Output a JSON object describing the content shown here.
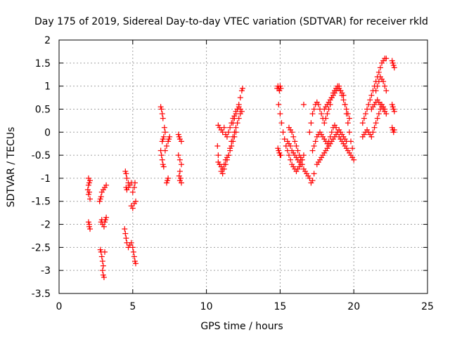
{
  "chart_data": {
    "type": "scatter",
    "title": "Day 175 of 2019, Sidereal Day-to-day VTEC variation (SDTVAR) for receiver rkld",
    "xlabel": "GPS time / hours",
    "ylabel": "SDTVAR / TECUs",
    "xlim": [
      0,
      25
    ],
    "ylim": [
      -3.5,
      2
    ],
    "xticks": [
      0,
      5,
      10,
      15,
      20,
      25
    ],
    "yticks": [
      -3.5,
      -3,
      -2.5,
      -2,
      -1.5,
      -1,
      -0.5,
      0,
      0.5,
      1,
      1.5,
      2
    ],
    "grid": true,
    "marker": "+",
    "color": "#ff0000",
    "series": [
      {
        "name": "SDTVAR",
        "x": [
          2.0,
          2.0,
          2.05,
          2.1,
          2.0,
          2.05,
          2.05,
          2.1,
          1.95,
          2.0,
          2.05,
          2.1,
          2.75,
          2.8,
          2.85,
          2.9,
          3.0,
          3.1,
          3.2,
          2.85,
          2.9,
          2.95,
          3.05,
          3.1,
          3.15,
          3.2,
          2.8,
          2.85,
          2.9,
          2.95,
          3.0,
          2.95,
          3.0,
          3.05,
          3.1,
          4.5,
          4.55,
          4.6,
          4.7,
          4.55,
          4.6,
          4.7,
          4.8,
          4.9,
          5.0,
          5.1,
          5.15,
          4.45,
          4.5,
          4.55,
          4.6,
          4.7,
          4.8,
          4.9,
          5.0,
          5.05,
          5.1,
          5.15,
          5.2,
          4.9,
          5.0,
          5.1,
          5.2,
          6.9,
          6.95,
          7.0,
          7.05,
          7.15,
          7.2,
          7.1,
          7.05,
          7.0,
          6.9,
          6.95,
          7.0,
          7.05,
          7.1,
          7.2,
          7.3,
          7.4,
          7.45,
          7.5,
          7.4,
          7.35,
          7.3,
          8.1,
          8.15,
          8.2,
          8.3,
          8.1,
          8.2,
          8.3,
          8.2,
          8.15,
          8.2,
          8.3,
          8.25,
          10.8,
          10.9,
          11.0,
          11.1,
          11.2,
          11.3,
          11.4,
          11.5,
          11.6,
          11.7,
          11.8,
          11.9,
          12.0,
          12.1,
          12.2,
          12.3,
          12.4,
          12.45,
          10.75,
          10.8,
          10.9,
          11.0,
          11.1,
          11.2,
          11.3,
          11.4,
          11.5,
          11.6,
          11.7,
          11.8,
          11.9,
          12.0,
          12.1,
          12.2,
          12.3,
          10.8,
          10.9,
          11.0,
          11.1,
          11.2,
          11.3,
          11.4,
          11.5,
          11.6,
          11.7,
          11.8,
          11.9,
          12.0,
          11.8,
          11.9,
          12.0,
          12.1,
          12.2,
          12.3,
          12.4,
          14.8,
          14.85,
          14.9,
          14.95,
          15.0,
          15.05,
          14.85,
          14.9,
          14.95,
          15.0,
          15.05,
          14.9,
          15.0,
          15.1,
          15.2,
          15.3,
          15.4,
          15.5,
          15.6,
          15.7,
          15.8,
          15.9,
          16.0,
          16.1,
          16.2,
          16.3,
          16.4,
          16.5,
          16.6,
          15.6,
          15.7,
          15.8,
          15.9,
          16.0,
          16.1,
          16.2,
          16.3,
          16.4,
          16.5,
          16.6,
          16.7,
          16.8,
          16.9,
          17.0,
          17.1,
          17.2,
          17.3,
          15.5,
          15.6,
          15.7,
          15.8,
          15.9,
          16.0,
          16.1,
          16.2,
          16.3,
          16.4,
          16.6,
          17.0,
          17.1,
          17.2,
          17.3,
          17.4,
          17.5,
          17.6,
          17.7,
          17.8,
          17.9,
          18.0,
          18.1,
          18.2,
          18.3,
          18.4,
          18.5,
          18.6,
          18.7,
          18.8,
          18.9,
          19.0,
          19.1,
          19.2,
          19.3,
          19.4,
          19.5,
          19.6,
          19.7,
          19.8,
          19.9,
          17.2,
          17.3,
          17.4,
          17.5,
          17.6,
          17.7,
          17.8,
          17.9,
          18.0,
          18.1,
          18.2,
          18.3,
          18.4,
          18.5,
          18.6,
          18.7,
          18.8,
          18.9,
          19.0,
          19.1,
          19.2,
          19.3,
          19.4,
          19.5,
          19.6,
          19.7,
          19.8,
          19.9,
          20.0,
          17.5,
          17.6,
          17.7,
          17.8,
          17.9,
          18.0,
          18.1,
          18.2,
          18.3,
          18.4,
          18.5,
          18.6,
          18.7,
          18.8,
          18.9,
          19.0,
          19.1,
          19.2,
          19.3,
          19.4,
          19.5,
          18.0,
          18.1,
          18.2,
          18.3,
          18.4,
          18.5,
          18.6,
          18.7,
          18.8,
          18.9,
          19.0,
          19.1,
          19.2,
          19.3,
          19.4,
          19.5,
          19.6,
          19.7,
          20.6,
          20.7,
          20.8,
          20.9,
          21.0,
          21.1,
          21.2,
          21.3,
          21.4,
          21.5,
          21.6,
          21.7,
          21.8,
          21.9,
          22.0,
          22.1,
          22.2,
          20.6,
          20.7,
          20.8,
          20.9,
          21.0,
          21.1,
          21.2,
          21.3,
          21.4,
          21.5,
          21.6,
          21.7,
          21.8,
          21.9,
          22.0,
          22.1,
          21.2,
          21.3,
          21.4,
          21.5,
          21.6,
          21.7,
          21.8,
          21.9,
          22.0,
          22.1,
          22.2,
          21.5,
          21.6,
          21.7,
          21.8,
          21.9,
          22.0,
          22.1,
          22.2,
          22.6,
          22.65,
          22.7,
          22.75,
          22.6,
          22.65,
          22.7,
          22.75,
          22.6,
          22.65,
          22.7,
          22.75
        ],
        "y": [
          -1.0,
          -1.15,
          -1.3,
          -1.45,
          -1.95,
          -2.0,
          -2.05,
          -2.1,
          -1.25,
          -1.35,
          -1.1,
          -1.05,
          -1.5,
          -1.45,
          -1.4,
          -1.3,
          -1.25,
          -1.2,
          -1.15,
          -1.95,
          -1.9,
          -2.0,
          -2.05,
          -1.95,
          -1.9,
          -1.85,
          -2.55,
          -2.6,
          -2.7,
          -2.8,
          -2.9,
          -3.0,
          -3.1,
          -3.15,
          -2.6,
          -0.85,
          -0.9,
          -1.0,
          -1.1,
          -1.2,
          -1.25,
          -1.2,
          -1.15,
          -1.1,
          -1.3,
          -1.2,
          -1.1,
          -2.1,
          -2.2,
          -2.3,
          -2.4,
          -2.5,
          -2.45,
          -2.4,
          -2.5,
          -2.6,
          -2.7,
          -2.8,
          -2.85,
          -1.6,
          -1.65,
          -1.55,
          -1.5,
          0.55,
          0.5,
          0.4,
          0.3,
          0.1,
          0.0,
          -0.1,
          -0.15,
          -0.2,
          -0.4,
          -0.5,
          -0.6,
          -0.7,
          -0.75,
          -0.4,
          -0.3,
          -0.2,
          -0.15,
          -0.1,
          -1.0,
          -1.05,
          -1.1,
          -0.05,
          -0.1,
          -0.15,
          -0.2,
          -0.5,
          -0.6,
          -0.7,
          -0.85,
          -0.95,
          -1.05,
          -1.1,
          -1.0,
          0.15,
          0.1,
          0.05,
          0.0,
          0.1,
          -0.05,
          -0.1,
          0.0,
          0.1,
          0.2,
          0.3,
          0.35,
          0.45,
          0.5,
          0.6,
          0.75,
          0.9,
          0.95,
          -0.3,
          -0.5,
          -0.7,
          -0.85,
          -0.9,
          -0.8,
          -0.7,
          -0.6,
          -0.5,
          -0.35,
          -0.2,
          -0.1,
          0.0,
          0.1,
          0.2,
          0.3,
          0.4,
          -0.65,
          -0.7,
          -0.75,
          -0.8,
          -0.7,
          -0.6,
          -0.55,
          -0.5,
          -0.4,
          -0.3,
          -0.2,
          -0.1,
          0.0,
          0.2,
          0.3,
          0.4,
          0.5,
          0.55,
          0.5,
          0.45,
          0.95,
          1.0,
          0.95,
          0.9,
          1.0,
          0.95,
          -0.35,
          -0.4,
          -0.45,
          -0.5,
          -0.5,
          0.6,
          0.4,
          0.2,
          0.0,
          -0.15,
          -0.3,
          -0.4,
          -0.5,
          -0.6,
          -0.7,
          -0.75,
          -0.8,
          -0.85,
          -0.8,
          -0.75,
          -0.7,
          -0.6,
          -0.5,
          0.1,
          0.05,
          0.0,
          -0.1,
          -0.2,
          -0.3,
          -0.4,
          -0.5,
          -0.6,
          -0.7,
          -0.8,
          -0.85,
          -0.9,
          -0.95,
          -1.0,
          -1.1,
          -1.05,
          -0.9,
          -0.2,
          -0.25,
          -0.3,
          -0.4,
          -0.45,
          -0.5,
          -0.55,
          -0.6,
          -0.65,
          -0.55,
          0.6,
          0.0,
          0.2,
          0.4,
          0.5,
          0.6,
          0.65,
          0.6,
          0.5,
          0.4,
          0.3,
          0.2,
          0.3,
          0.4,
          0.5,
          0.6,
          0.75,
          0.85,
          0.9,
          0.95,
          1.0,
          0.95,
          0.9,
          0.85,
          0.8,
          0.6,
          0.4,
          0.2,
          0.0,
          -0.2,
          -0.35,
          -0.4,
          -0.3,
          -0.2,
          -0.1,
          -0.05,
          0.0,
          -0.05,
          -0.1,
          -0.15,
          -0.2,
          -0.25,
          -0.2,
          -0.1,
          0.0,
          0.1,
          0.15,
          0.1,
          0.0,
          -0.1,
          -0.15,
          -0.2,
          -0.25,
          -0.3,
          -0.35,
          -0.4,
          -0.45,
          -0.5,
          -0.55,
          -0.6,
          -0.7,
          -0.65,
          -0.6,
          -0.55,
          -0.5,
          -0.45,
          -0.4,
          -0.35,
          -0.3,
          -0.25,
          -0.2,
          -0.15,
          -0.1,
          -0.05,
          0.0,
          0.05,
          0.0,
          -0.05,
          -0.1,
          -0.15,
          -0.2,
          0.5,
          0.55,
          0.6,
          0.65,
          0.7,
          0.75,
          0.8,
          0.85,
          0.9,
          0.95,
          1.0,
          0.9,
          0.8,
          0.7,
          0.6,
          0.5,
          0.4,
          0.3,
          0.2,
          0.3,
          0.4,
          0.5,
          0.6,
          0.7,
          0.8,
          0.9,
          1.0,
          1.1,
          1.2,
          1.3,
          1.4,
          1.5,
          1.55,
          1.6,
          1.6,
          -0.1,
          -0.05,
          0.0,
          0.05,
          0.0,
          -0.05,
          -0.1,
          0.0,
          0.1,
          0.2,
          0.3,
          0.4,
          0.5,
          0.6,
          0.55,
          0.5,
          0.5,
          0.55,
          0.6,
          0.65,
          0.7,
          0.65,
          0.6,
          0.55,
          0.5,
          0.45,
          0.4,
          0.9,
          1.0,
          1.1,
          1.2,
          1.15,
          1.1,
          1.0,
          0.9,
          1.55,
          1.5,
          1.45,
          1.4,
          0.6,
          0.55,
          0.5,
          0.45,
          0.1,
          0.05,
          0.0,
          0.05
        ]
      }
    ]
  }
}
